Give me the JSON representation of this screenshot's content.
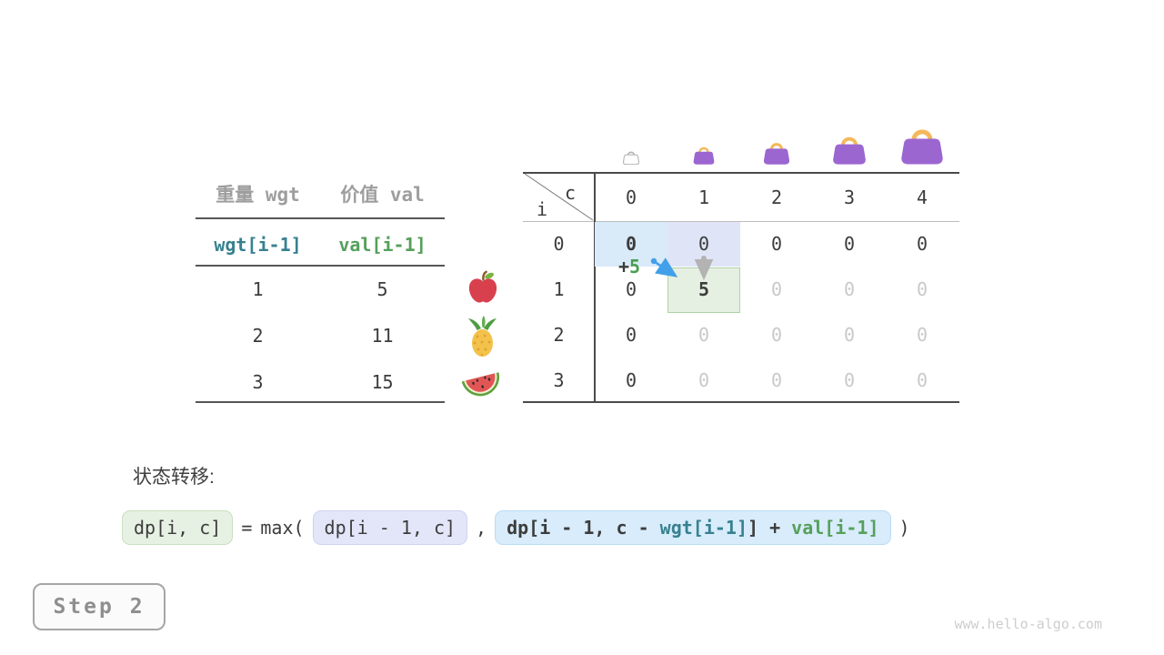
{
  "page": {
    "step_label": "Step 2",
    "watermark": "www.hello-algo.com",
    "transition_label": "状态转移:"
  },
  "items_table": {
    "headers": [
      "重量 wgt",
      "价值 val"
    ],
    "index_row": [
      "wgt[i-1]",
      "val[i-1]"
    ],
    "rows": [
      {
        "wgt": "1",
        "val": "5"
      },
      {
        "wgt": "2",
        "val": "11"
      },
      {
        "wgt": "3",
        "val": "15"
      }
    ],
    "fruit_icons": [
      "apple-icon",
      "pineapple-icon",
      "watermelon-icon"
    ]
  },
  "dp_table": {
    "corner": {
      "col_var": "c",
      "row_var": "i"
    },
    "col_headers": [
      "0",
      "1",
      "2",
      "3",
      "4"
    ],
    "row_headers": [
      "0",
      "1",
      "2",
      "3"
    ],
    "cells": [
      [
        {
          "v": "0",
          "emph": "bold",
          "hl": "blue"
        },
        {
          "v": "0",
          "emph": "normal",
          "hl": "lavender"
        },
        {
          "v": "0",
          "emph": "normal"
        },
        {
          "v": "0",
          "emph": "normal"
        },
        {
          "v": "0",
          "emph": "normal"
        }
      ],
      [
        {
          "v": "0",
          "emph": "normal"
        },
        {
          "v": "5",
          "emph": "bold",
          "hl": "green"
        },
        {
          "v": "0",
          "emph": "light"
        },
        {
          "v": "0",
          "emph": "light"
        },
        {
          "v": "0",
          "emph": "light"
        }
      ],
      [
        {
          "v": "0",
          "emph": "normal"
        },
        {
          "v": "0",
          "emph": "light"
        },
        {
          "v": "0",
          "emph": "light"
        },
        {
          "v": "0",
          "emph": "light"
        },
        {
          "v": "0",
          "emph": "light"
        }
      ],
      [
        {
          "v": "0",
          "emph": "normal"
        },
        {
          "v": "0",
          "emph": "light"
        },
        {
          "v": "0",
          "emph": "light"
        },
        {
          "v": "0",
          "emph": "light"
        },
        {
          "v": "0",
          "emph": "light"
        }
      ]
    ],
    "annotation": {
      "plus": "+",
      "value": "5"
    },
    "bag_icons": [
      "bag-capacity-0",
      "bag-capacity-1",
      "bag-capacity-2",
      "bag-capacity-3",
      "bag-capacity-4"
    ]
  },
  "formula": {
    "lhs": "dp[i, c]",
    "equals": "=",
    "max_open": "max(",
    "option1": "dp[i - 1, c]",
    "comma": ",",
    "option2_prefix": "dp[i - 1, c - ",
    "option2_wgt": "wgt[i-1]",
    "option2_mid": "] + ",
    "option2_val": "val[i-1]",
    "close": ")"
  },
  "colors": {
    "wgt_teal": "#37818f",
    "val_green": "#55a05b",
    "plus_green": "#4a9e50",
    "hl_blue": "#d9eaf8",
    "hl_lavender": "#e0e4f7",
    "hl_green_fill": "#e6f0e2",
    "hl_green_border": "#afd3a6",
    "arrow_blue": "#42a0ea",
    "arrow_gray": "#b3b3b3",
    "bag_purple": "#9c66d1",
    "bag_handle": "#f4b95b",
    "light_value": "#c9c9c9",
    "dark_text": "#3c3c3c"
  }
}
